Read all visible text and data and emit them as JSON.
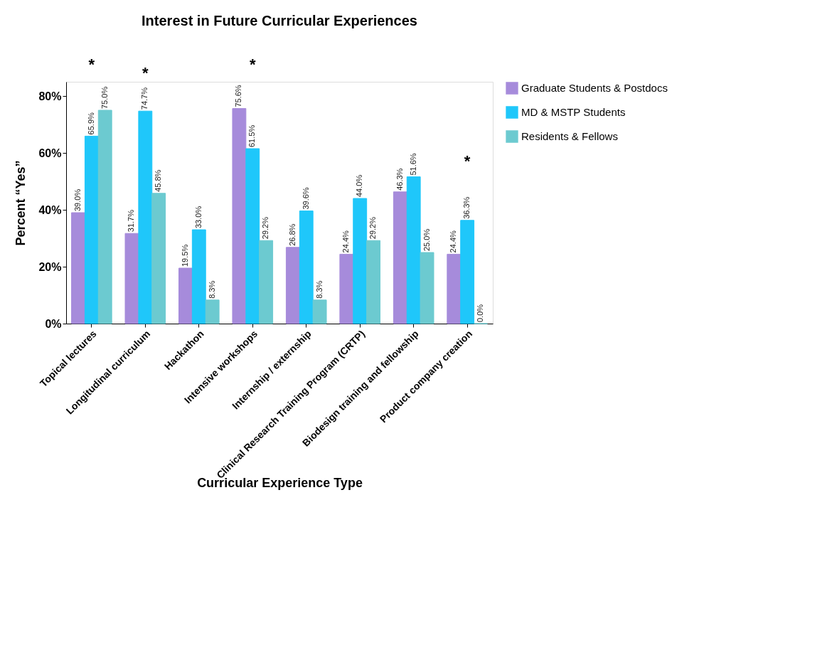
{
  "chart_data": {
    "type": "bar",
    "title": "Interest in Future Curricular Experiences",
    "xlabel": "Curricular Experience Type",
    "ylabel": "Percent “Yes”",
    "categories": [
      "Topical lectures",
      "Longitudinal curriculum",
      "Hackathon",
      "Intensive workshops",
      "Internship / externship",
      "Clinical Research Training Program (CRTP)",
      "Biodesign training and fellowship",
      "Product company creation"
    ],
    "series": [
      {
        "name": "Graduate Students & Postdocs",
        "color": "#a68bdb",
        "values": [
          39.0,
          31.7,
          19.5,
          75.6,
          26.8,
          24.4,
          46.3,
          24.4
        ],
        "value_labels": [
          "39.0%",
          "31.7%",
          "19.5%",
          "75.6%",
          "26.8%",
          "24.4%",
          "46.3%",
          "24.4%"
        ]
      },
      {
        "name": "MD & MSTP Students",
        "color": "#1fc7fa",
        "values": [
          65.9,
          74.7,
          33.0,
          61.5,
          39.6,
          44.0,
          51.6,
          36.3
        ],
        "value_labels": [
          "65.9%",
          "74.7%",
          "33.0%",
          "61.5%",
          "39.6%",
          "44.0%",
          "51.6%",
          "36.3%"
        ]
      },
      {
        "name": "Residents & Fellows",
        "color": "#6ccad0",
        "values": [
          75.0,
          45.8,
          8.3,
          29.2,
          8.3,
          29.2,
          25.0,
          0.0
        ],
        "value_labels": [
          "75.0%",
          "45.8%",
          "8.3%",
          "29.2%",
          "8.3%",
          "29.2%",
          "25.0%",
          "0.0%"
        ]
      }
    ],
    "ylim": [
      0,
      85
    ],
    "yticks": [
      {
        "value": 0,
        "label": "0%"
      },
      {
        "value": 20,
        "label": "20%"
      },
      {
        "value": 40,
        "label": "40%"
      },
      {
        "value": 60,
        "label": "60%"
      },
      {
        "value": 80,
        "label": "80%"
      }
    ],
    "annotations": [
      "*",
      "*",
      "*",
      "*"
    ],
    "grid": false,
    "legend": "right"
  }
}
